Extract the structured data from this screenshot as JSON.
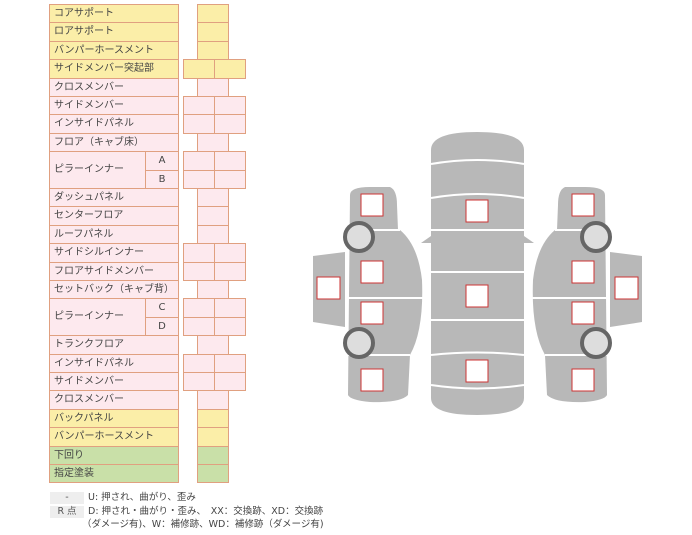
{
  "rows": [
    {
      "label": "コアサポート",
      "color": "yellow",
      "boxes": 1
    },
    {
      "label": "ロアサポート",
      "color": "yellow",
      "boxes": 1
    },
    {
      "label": "バンパーホースメント",
      "color": "yellow",
      "boxes": 1
    },
    {
      "label": "サイドメンバー突起部",
      "color": "yellow",
      "boxes": 2
    },
    {
      "label": "クロスメンバー",
      "color": "pink",
      "boxes": 1
    },
    {
      "label": "サイドメンバー",
      "color": "pink",
      "boxes": 2
    },
    {
      "label": "インサイドパネル",
      "color": "pink",
      "boxes": 2
    },
    {
      "label": "フロア（キャブ床）",
      "color": "pink",
      "boxes": 1
    },
    {
      "label": "ピラーインナー",
      "color": "pink",
      "boxes": 2,
      "subs": [
        "A",
        "B"
      ]
    },
    {
      "label": "ダッシュパネル",
      "color": "pink",
      "boxes": 1
    },
    {
      "label": "センターフロア",
      "color": "pink",
      "boxes": 1
    },
    {
      "label": "ルーフパネル",
      "color": "pink",
      "boxes": 1
    },
    {
      "label": "サイドシルインナー",
      "color": "pink",
      "boxes": 2
    },
    {
      "label": "フロアサイドメンバー",
      "color": "pink",
      "boxes": 2
    },
    {
      "label": "セットバック（キャブ背）",
      "color": "pink",
      "boxes": 1
    },
    {
      "label": "ピラーインナー",
      "color": "pink",
      "boxes": 2,
      "subs": [
        "C",
        "D"
      ]
    },
    {
      "label": "トランクフロア",
      "color": "pink",
      "boxes": 1
    },
    {
      "label": "インサイドパネル",
      "color": "pink",
      "boxes": 2
    },
    {
      "label": "サイドメンバー",
      "color": "pink",
      "boxes": 2
    },
    {
      "label": "クロスメンバー",
      "color": "pink",
      "boxes": 1
    },
    {
      "label": "バックパネル",
      "color": "yellow",
      "boxes": 1
    },
    {
      "label": "バンパーホースメント",
      "color": "yellow",
      "boxes": 1
    },
    {
      "label": "下回り",
      "color": "green",
      "boxes": 1
    },
    {
      "label": "指定塗装",
      "color": "green",
      "boxes": 1
    }
  ],
  "legend": {
    "key1": "-",
    "text1": "U: 押され、曲がり、歪み",
    "key2": "R 点",
    "text2": "D: 押され・曲がり・歪み、　XX：交換跡、XD：交換跡",
    "text3": "（ダメージ有)、W：補修跡、WD：補修跡（ダメージ有)"
  },
  "colors": {
    "yellow": "#fbeea8",
    "pink": "#fde9ee",
    "green": "#c9e0a8",
    "border": "#e0a080",
    "car": "#b8b8b8",
    "marker": "#cc3333"
  }
}
